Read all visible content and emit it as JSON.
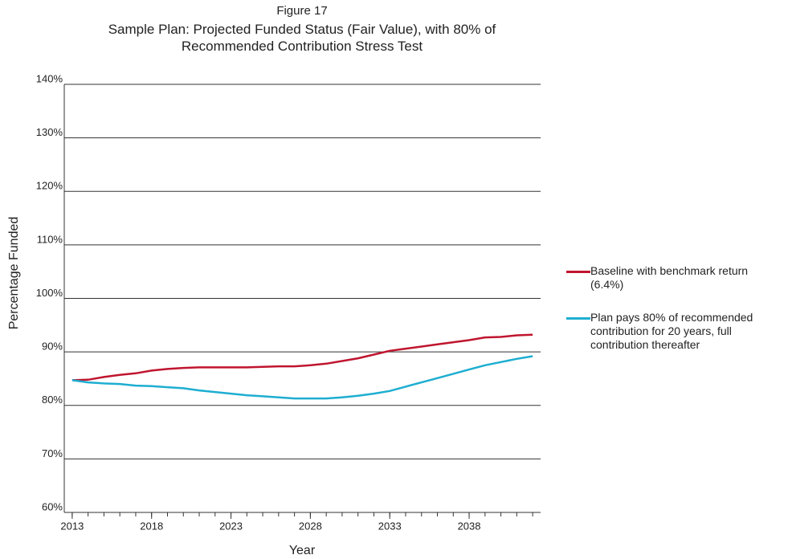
{
  "chart_data": {
    "type": "line",
    "title": "Figure 17",
    "subtitle": "Sample Plan: Projected Funded Status (Fair Value), with 80% of Recommended Contribution Stress Test",
    "x_label": "Year",
    "y_label": "Percentage Funded",
    "x": [
      2013,
      2014,
      2015,
      2016,
      2017,
      2018,
      2019,
      2020,
      2021,
      2022,
      2023,
      2024,
      2025,
      2026,
      2027,
      2028,
      2029,
      2030,
      2031,
      2032,
      2033,
      2034,
      2035,
      2036,
      2037,
      2038,
      2039,
      2040,
      2041,
      2042
    ],
    "series": [
      {
        "name": "Baseline with benchmark return (6.4%)",
        "color": "#c0152f",
        "values": [
          84.7,
          84.8,
          85.3,
          85.7,
          86.0,
          86.5,
          86.8,
          87.0,
          87.1,
          87.1,
          87.1,
          87.1,
          87.2,
          87.3,
          87.3,
          87.5,
          87.8,
          88.3,
          88.8,
          89.5,
          90.2,
          90.6,
          91.0,
          91.4,
          91.8,
          92.2,
          92.7,
          92.8,
          93.1,
          93.2
        ]
      },
      {
        "name": "Plan pays 80% of recommended contribution for 20 years, full contribution thereafter",
        "color": "#1eaed1",
        "values": [
          84.7,
          84.3,
          84.1,
          84.0,
          83.7,
          83.6,
          83.4,
          83.2,
          82.8,
          82.5,
          82.2,
          81.9,
          81.7,
          81.5,
          81.3,
          81.3,
          81.3,
          81.5,
          81.8,
          82.2,
          82.7,
          83.5,
          84.3,
          85.1,
          85.9,
          86.7,
          87.5,
          88.1,
          88.7,
          89.2
        ]
      }
    ],
    "xlim": [
      2012.5,
      2042.5
    ],
    "xticks": [
      2013,
      2018,
      2023,
      2028,
      2033,
      2038
    ],
    "ylim": [
      60,
      140
    ],
    "yticks": [
      {
        "value": 60,
        "label": "60%"
      },
      {
        "value": 70,
        "label": "70%"
      },
      {
        "value": 80,
        "label": "80%"
      },
      {
        "value": 90,
        "label": "90%"
      },
      {
        "value": 100,
        "label": "100%"
      },
      {
        "value": 110,
        "label": "110%"
      },
      {
        "value": 120,
        "label": "120%"
      },
      {
        "value": 130,
        "label": "130%"
      },
      {
        "value": 140,
        "label": "140%"
      }
    ],
    "grid": true,
    "legend": "right"
  }
}
